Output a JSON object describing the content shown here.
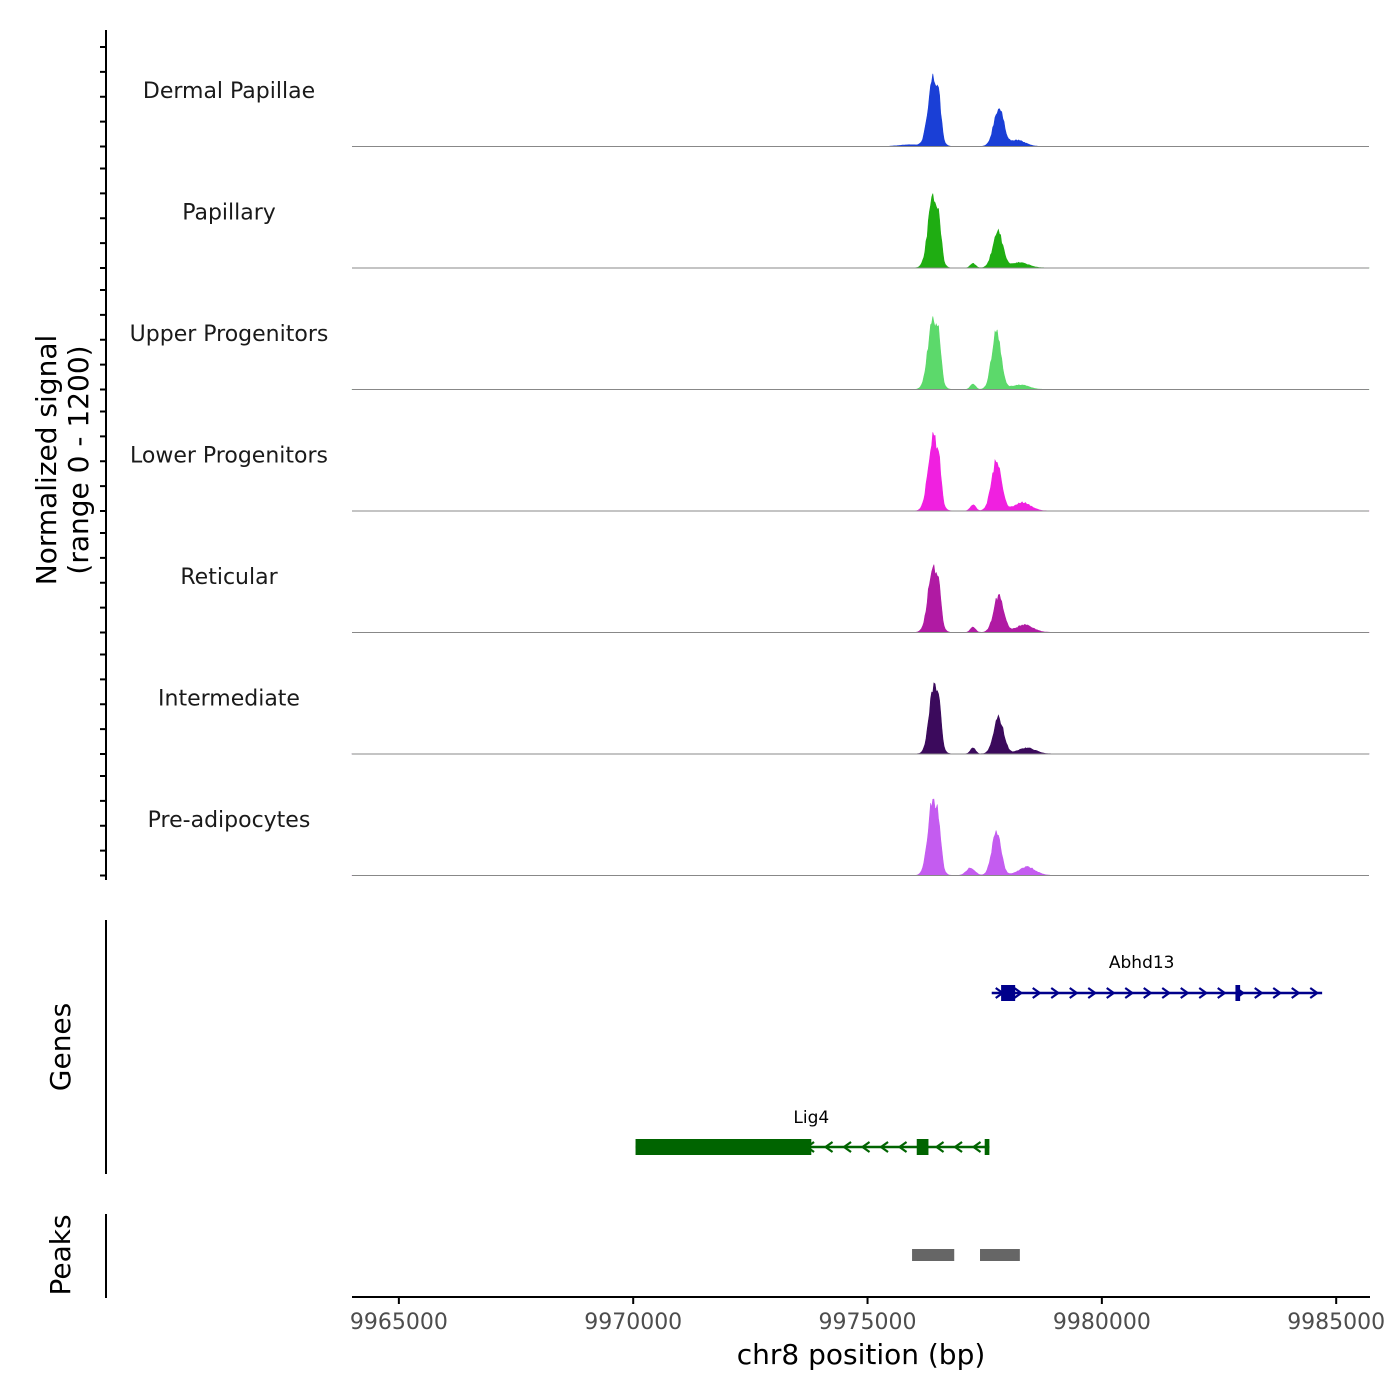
{
  "chart_data": {
    "type": "area",
    "title": "",
    "xlabel": "chr8 position (bp)",
    "ylabel": "Normalized signal\n(range 0 - 1200)",
    "y_range": [
      0,
      1200
    ],
    "xlim": [
      9964000,
      9985700
    ],
    "x_ticks": [
      9965000,
      9970000,
      9975000,
      9980000,
      9985000
    ],
    "x_tick_labels": [
      "9965000",
      "9970000",
      "9975000",
      "9980000",
      "9985000"
    ],
    "tracks": [
      {
        "name": "Dermal Papillae",
        "color": "#1a3fd6",
        "peaks": [
          {
            "center": 9976400,
            "width": 300,
            "height": 900
          },
          {
            "center": 9976530,
            "width": 130,
            "height": 250
          },
          {
            "center": 9977800,
            "width": 300,
            "height": 500
          },
          {
            "center": 9978200,
            "width": 450,
            "height": 80
          },
          {
            "center": 9975900,
            "width": 600,
            "height": 20
          }
        ]
      },
      {
        "name": "Papillary",
        "color": "#1fad12",
        "peaks": [
          {
            "center": 9976400,
            "width": 300,
            "height": 920
          },
          {
            "center": 9976530,
            "width": 130,
            "height": 250
          },
          {
            "center": 9977780,
            "width": 300,
            "height": 480
          },
          {
            "center": 9977250,
            "width": 150,
            "height": 60
          },
          {
            "center": 9978250,
            "width": 500,
            "height": 70
          }
        ]
      },
      {
        "name": "Upper Progenitors",
        "color": "#5cd96b",
        "peaks": [
          {
            "center": 9976400,
            "width": 300,
            "height": 950
          },
          {
            "center": 9976530,
            "width": 130,
            "height": 250
          },
          {
            "center": 9977750,
            "width": 280,
            "height": 750
          },
          {
            "center": 9977250,
            "width": 150,
            "height": 70
          },
          {
            "center": 9978250,
            "width": 500,
            "height": 60
          }
        ]
      },
      {
        "name": "Lower Progenitors",
        "color": "#f020e0",
        "peaks": [
          {
            "center": 9976400,
            "width": 300,
            "height": 950
          },
          {
            "center": 9976530,
            "width": 130,
            "height": 250
          },
          {
            "center": 9977750,
            "width": 300,
            "height": 640
          },
          {
            "center": 9977250,
            "width": 160,
            "height": 80
          },
          {
            "center": 9978300,
            "width": 500,
            "height": 110
          }
        ]
      },
      {
        "name": "Reticular",
        "color": "#b01aa3",
        "peaks": [
          {
            "center": 9976400,
            "width": 300,
            "height": 850
          },
          {
            "center": 9976530,
            "width": 130,
            "height": 230
          },
          {
            "center": 9977800,
            "width": 300,
            "height": 480
          },
          {
            "center": 9977250,
            "width": 150,
            "height": 70
          },
          {
            "center": 9978350,
            "width": 500,
            "height": 100
          }
        ]
      },
      {
        "name": "Intermediate",
        "color": "#3b0a5c",
        "peaks": [
          {
            "center": 9976420,
            "width": 280,
            "height": 920
          },
          {
            "center": 9976540,
            "width": 120,
            "height": 220
          },
          {
            "center": 9977800,
            "width": 300,
            "height": 470
          },
          {
            "center": 9977250,
            "width": 150,
            "height": 80
          },
          {
            "center": 9978400,
            "width": 500,
            "height": 80
          }
        ]
      },
      {
        "name": "Pre-adipocytes",
        "color": "#c45cf0",
        "peaks": [
          {
            "center": 9976400,
            "width": 300,
            "height": 1000
          },
          {
            "center": 9976530,
            "width": 130,
            "height": 250
          },
          {
            "center": 9977750,
            "width": 280,
            "height": 550
          },
          {
            "center": 9977200,
            "width": 250,
            "height": 100
          },
          {
            "center": 9978400,
            "width": 500,
            "height": 110
          }
        ]
      }
    ],
    "genes_track": {
      "label": "Genes",
      "genes": [
        {
          "name": "Abhd13",
          "strand": "+",
          "color": "#00008b",
          "start": 9977650,
          "end": 9984700,
          "exons": [
            [
              9977850,
              9978150
            ],
            [
              9982850,
              9982950
            ]
          ]
        },
        {
          "name": "Lig4",
          "strand": "-",
          "color": "#006400",
          "start": 9970050,
          "end": 9977600,
          "exons": [
            [
              9970050,
              9973800
            ],
            [
              9976050,
              9976300
            ],
            [
              9977500,
              9977600
            ]
          ]
        }
      ]
    },
    "peaks_track": {
      "label": "Peaks",
      "color": "#666666",
      "regions": [
        [
          9975950,
          9976850
        ],
        [
          9977400,
          9978250
        ]
      ]
    }
  }
}
